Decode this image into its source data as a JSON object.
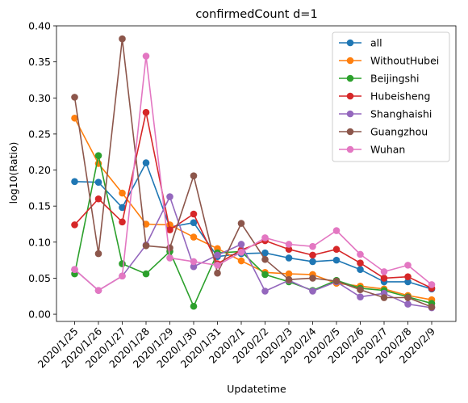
{
  "chart_data": {
    "type": "line",
    "title": "confirmedCount d=1",
    "xlabel": "Updatetime",
    "ylabel": "log10(Ratio)",
    "ylim": [
      -0.01,
      0.4
    ],
    "yticks": [
      "0.00",
      "0.05",
      "0.10",
      "0.15",
      "0.20",
      "0.25",
      "0.30",
      "0.35",
      "0.40"
    ],
    "grid": false,
    "legend_position": "top-right",
    "categories": [
      "2020/1/25",
      "2020/1/26",
      "2020/1/27",
      "2020/1/28",
      "2020/1/29",
      "2020/1/30",
      "2020/1/31",
      "2020/2/1",
      "2020/2/2",
      "2020/2/3",
      "2020/2/4",
      "2020/2/5",
      "2020/2/6",
      "2020/2/7",
      "2020/2/8",
      "2020/2/9"
    ],
    "series": [
      {
        "name": "all",
        "color": "#1f77b4",
        "values": [
          0.184,
          0.183,
          0.148,
          0.21,
          0.121,
          0.127,
          0.08,
          0.084,
          0.085,
          0.078,
          0.073,
          0.075,
          0.062,
          0.045,
          0.045,
          0.035
        ]
      },
      {
        "name": "WithoutHubei",
        "color": "#ff7f0e",
        "values": [
          0.272,
          0.209,
          0.168,
          0.125,
          0.124,
          0.107,
          0.091,
          0.074,
          0.058,
          0.056,
          0.055,
          0.043,
          0.039,
          0.035,
          0.026,
          0.02
        ]
      },
      {
        "name": "Beijingshi",
        "color": "#2ca02c",
        "values": [
          0.056,
          0.22,
          0.07,
          0.056,
          0.087,
          0.011,
          0.085,
          0.087,
          0.055,
          0.045,
          0.033,
          0.047,
          0.036,
          0.033,
          0.024,
          0.015
        ]
      },
      {
        "name": "Hubeisheng",
        "color": "#d62728",
        "values": [
          0.124,
          0.16,
          0.128,
          0.28,
          0.117,
          0.139,
          0.07,
          0.089,
          0.102,
          0.09,
          0.082,
          0.09,
          0.071,
          0.05,
          0.052,
          0.036
        ]
      },
      {
        "name": "Shanghaishi",
        "color": "#9467bd",
        "values": [
          0.062,
          0.033,
          0.053,
          0.096,
          0.163,
          0.066,
          0.082,
          0.097,
          0.032,
          0.047,
          0.032,
          0.045,
          0.024,
          0.029,
          0.014,
          0.009
        ]
      },
      {
        "name": "Guangzhou",
        "color": "#8c564b",
        "values": [
          0.301,
          0.084,
          0.382,
          0.095,
          0.092,
          0.192,
          0.057,
          0.126,
          0.076,
          0.048,
          0.05,
          0.046,
          0.034,
          0.023,
          0.023,
          0.01
        ]
      },
      {
        "name": "Wuhan",
        "color": "#e377c2",
        "values": [
          0.062,
          0.033,
          0.053,
          0.358,
          0.078,
          0.073,
          0.068,
          0.086,
          0.106,
          0.097,
          0.094,
          0.116,
          0.083,
          0.059,
          0.068,
          0.041
        ]
      }
    ]
  }
}
